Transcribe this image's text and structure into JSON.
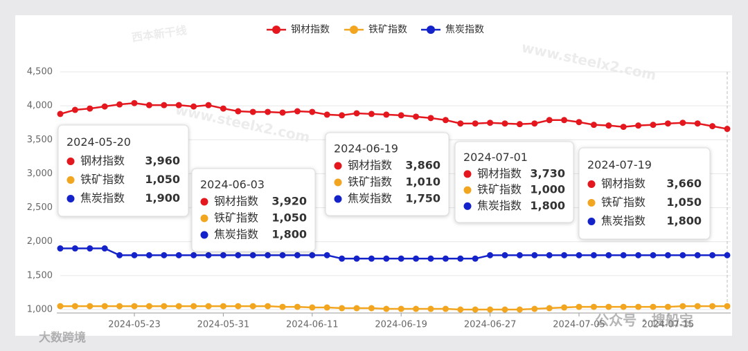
{
  "chart_data": {
    "type": "line",
    "categories": [
      null,
      null,
      null,
      null,
      null,
      "2024-05-23",
      null,
      null,
      null,
      null,
      null,
      "2024-05-31",
      null,
      null,
      null,
      null,
      null,
      "2024-06-11",
      null,
      null,
      null,
      null,
      null,
      "2024-06-19",
      null,
      null,
      null,
      null,
      null,
      "2024-06-27",
      null,
      null,
      null,
      null,
      null,
      "2024-07-05",
      null,
      null,
      null,
      null,
      null,
      "2024-07-15",
      null,
      null,
      null,
      null
    ],
    "series": [
      {
        "name": "钢材指数",
        "color": "#e3171d",
        "values": [
          3880,
          3940,
          3960,
          3990,
          4020,
          4040,
          4010,
          4010,
          4010,
          3990,
          4010,
          3960,
          3920,
          3910,
          3910,
          3900,
          3920,
          3910,
          3870,
          3860,
          3890,
          3880,
          3870,
          3860,
          3840,
          3820,
          3790,
          3740,
          3740,
          3750,
          3740,
          3730,
          3740,
          3790,
          3790,
          3760,
          3720,
          3710,
          3690,
          3710,
          3720,
          3740,
          3750,
          3740,
          3700,
          3660
        ]
      },
      {
        "name": "铁矿指数",
        "color": "#f2a51f",
        "values": [
          1050,
          1050,
          1050,
          1050,
          1050,
          1050,
          1050,
          1050,
          1050,
          1050,
          1050,
          1050,
          1050,
          1050,
          1050,
          1040,
          1040,
          1030,
          1030,
          1020,
          1020,
          1020,
          1010,
          1010,
          1010,
          1010,
          1010,
          1000,
          1000,
          1000,
          1000,
          1000,
          1010,
          1020,
          1030,
          1040,
          1040,
          1040,
          1040,
          1040,
          1040,
          1040,
          1050,
          1050,
          1050,
          1050
        ]
      },
      {
        "name": "焦炭指数",
        "color": "#1422c9",
        "values": [
          1900,
          1900,
          1900,
          1900,
          1800,
          1800,
          1800,
          1800,
          1800,
          1800,
          1800,
          1800,
          1800,
          1800,
          1800,
          1800,
          1800,
          1800,
          1800,
          1750,
          1750,
          1750,
          1750,
          1750,
          1750,
          1750,
          1750,
          1750,
          1750,
          1800,
          1800,
          1800,
          1800,
          1800,
          1800,
          1800,
          1800,
          1800,
          1800,
          1800,
          1800,
          1800,
          1800,
          1800,
          1800,
          1800
        ]
      }
    ],
    "ylim": [
      1000,
      4500
    ],
    "yticks": [
      {
        "value": 1000,
        "label": "1,000"
      },
      {
        "value": 1500,
        "label": "1,500"
      },
      {
        "value": 2000,
        "label": "2,000"
      },
      {
        "value": 2500,
        "label": "2,500"
      },
      {
        "value": 3000,
        "label": "3,000"
      },
      {
        "value": 3500,
        "label": "3,500"
      },
      {
        "value": 4000,
        "label": "4,000"
      },
      {
        "value": 4500,
        "label": "4,500"
      }
    ],
    "grid": true,
    "legend": "top",
    "tooltips": [
      {
        "date": "2024-05-20",
        "value_labels": [
          "3,960",
          "1,050",
          "1,900"
        ]
      },
      {
        "date": "2024-06-03",
        "value_labels": [
          "3,920",
          "1,050",
          "1,800"
        ]
      },
      {
        "date": "2024-06-19",
        "value_labels": [
          "3,860",
          "1,010",
          "1,750"
        ]
      },
      {
        "date": "2024-07-01",
        "value_labels": [
          "3,730",
          "1,000",
          "1,800"
        ]
      },
      {
        "date": "2024-07-19",
        "value_labels": [
          "3,660",
          "1,050",
          "1,800"
        ]
      }
    ],
    "watermarks": [
      "西本新干线",
      "www.steelx2.com",
      "公众号 · 搜船宝",
      "大数跨境"
    ]
  }
}
